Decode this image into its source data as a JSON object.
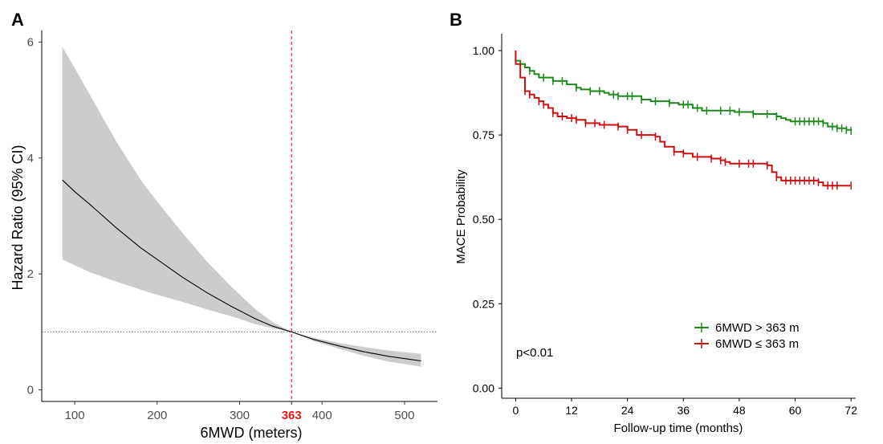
{
  "chart_data": [
    {
      "panel": "A",
      "type": "line",
      "xlabel": "6MWD (meters)",
      "ylabel": "Hazard Ratio (95% CI)",
      "xlim": [
        60,
        540
      ],
      "ylim": [
        -0.2,
        6.2
      ],
      "x_ticks": [
        100,
        200,
        300,
        400,
        500
      ],
      "y_ticks": [
        0,
        2,
        4,
        6
      ],
      "cutoff": {
        "x": 363,
        "label": "363",
        "color": "#e8191a"
      },
      "reference_line_y": 1,
      "series": [
        {
          "x": [
            85,
            100,
            120,
            150,
            180,
            200,
            230,
            260,
            290,
            320,
            340,
            363,
            390,
            420,
            450,
            480,
            520
          ],
          "hr": [
            3.62,
            3.42,
            3.18,
            2.8,
            2.45,
            2.25,
            1.95,
            1.68,
            1.44,
            1.22,
            1.1,
            1.0,
            0.87,
            0.76,
            0.66,
            0.58,
            0.5
          ],
          "lower": [
            2.25,
            2.15,
            2.02,
            1.87,
            1.73,
            1.64,
            1.52,
            1.39,
            1.27,
            1.13,
            1.06,
            1.0,
            0.84,
            0.71,
            0.59,
            0.49,
            0.4
          ],
          "upper": [
            5.92,
            5.55,
            5.05,
            4.3,
            3.62,
            3.25,
            2.72,
            2.22,
            1.78,
            1.38,
            1.17,
            1.0,
            0.9,
            0.81,
            0.74,
            0.68,
            0.62
          ]
        }
      ],
      "colors": {
        "line": "#000000",
        "band": "#cccccc",
        "reference": "#666666"
      }
    },
    {
      "panel": "B",
      "type": "line",
      "subtype": "kaplan-meier",
      "xlabel": "Follow-up time (months)",
      "ylabel": "MACE Probability",
      "xlim": [
        -3,
        73
      ],
      "ylim": [
        -0.03,
        1.05
      ],
      "x_ticks": [
        0,
        12,
        24,
        36,
        48,
        60,
        72
      ],
      "y_ticks": [
        0.0,
        0.25,
        0.5,
        0.75,
        1.0
      ],
      "y_tick_labels": [
        "0.00",
        "0.25",
        "0.50",
        "0.75",
        "1.00"
      ],
      "annotation": "p<0.01",
      "legend_position": "bottom-right",
      "series": [
        {
          "name": "6MWD > 363 m",
          "color": "#1e8a1e",
          "steps": [
            [
              0,
              0.97
            ],
            [
              1,
              0.96
            ],
            [
              2,
              0.95
            ],
            [
              3,
              0.94
            ],
            [
              4,
              0.93
            ],
            [
              5,
              0.92
            ],
            [
              8,
              0.91
            ],
            [
              11,
              0.9
            ],
            [
              13,
              0.89
            ],
            [
              14,
              0.885
            ],
            [
              16,
              0.88
            ],
            [
              19,
              0.875
            ],
            [
              20,
              0.87
            ],
            [
              22,
              0.865
            ],
            [
              27,
              0.855
            ],
            [
              29,
              0.85
            ],
            [
              33,
              0.845
            ],
            [
              35,
              0.84
            ],
            [
              38,
              0.83
            ],
            [
              40,
              0.822
            ],
            [
              47,
              0.818
            ],
            [
              51,
              0.812
            ],
            [
              56,
              0.805
            ],
            [
              57,
              0.8
            ],
            [
              58,
              0.795
            ],
            [
              59,
              0.79
            ],
            [
              66,
              0.785
            ],
            [
              67,
              0.775
            ],
            [
              69,
              0.77
            ],
            [
              71,
              0.765
            ],
            [
              72,
              0.762
            ]
          ],
          "censor_x": [
            3,
            6,
            8,
            10,
            13,
            16,
            18,
            21,
            22,
            24,
            25,
            27,
            30,
            33,
            36,
            37,
            39,
            41,
            44,
            46,
            48,
            51,
            54,
            56,
            60,
            61,
            62,
            63,
            64,
            65,
            66,
            68,
            69,
            70,
            71,
            72
          ]
        },
        {
          "name": "6MWD ≤ 363 m",
          "color": "#cc1111",
          "steps": [
            [
              0,
              1.0
            ],
            [
              0,
              0.96
            ],
            [
              1,
              0.92
            ],
            [
              2,
              0.88
            ],
            [
              3,
              0.87
            ],
            [
              4,
              0.86
            ],
            [
              5,
              0.85
            ],
            [
              6,
              0.84
            ],
            [
              7,
              0.83
            ],
            [
              8,
              0.815
            ],
            [
              9,
              0.805
            ],
            [
              11,
              0.8
            ],
            [
              13,
              0.795
            ],
            [
              15,
              0.785
            ],
            [
              18,
              0.78
            ],
            [
              22,
              0.775
            ],
            [
              24,
              0.765
            ],
            [
              26,
              0.75
            ],
            [
              30,
              0.745
            ],
            [
              31,
              0.73
            ],
            [
              32,
              0.715
            ],
            [
              34,
              0.7
            ],
            [
              36,
              0.695
            ],
            [
              38,
              0.685
            ],
            [
              42,
              0.68
            ],
            [
              44,
              0.675
            ],
            [
              45,
              0.67
            ],
            [
              46,
              0.665
            ],
            [
              54,
              0.66
            ],
            [
              55,
              0.64
            ],
            [
              56,
              0.625
            ],
            [
              57,
              0.615
            ],
            [
              65,
              0.61
            ],
            [
              66,
              0.6
            ],
            [
              72,
              0.6
            ]
          ],
          "censor_x": [
            2,
            3,
            5,
            6,
            8,
            10,
            12,
            13,
            15,
            17,
            19,
            22,
            24,
            27,
            30,
            34,
            36,
            39,
            42,
            44,
            45,
            48,
            50,
            51,
            54,
            56,
            58,
            59,
            60,
            61,
            62,
            63,
            64,
            65,
            67,
            68,
            69,
            72
          ]
        }
      ]
    }
  ],
  "panels": {
    "a_label": "A",
    "b_label": "B"
  }
}
